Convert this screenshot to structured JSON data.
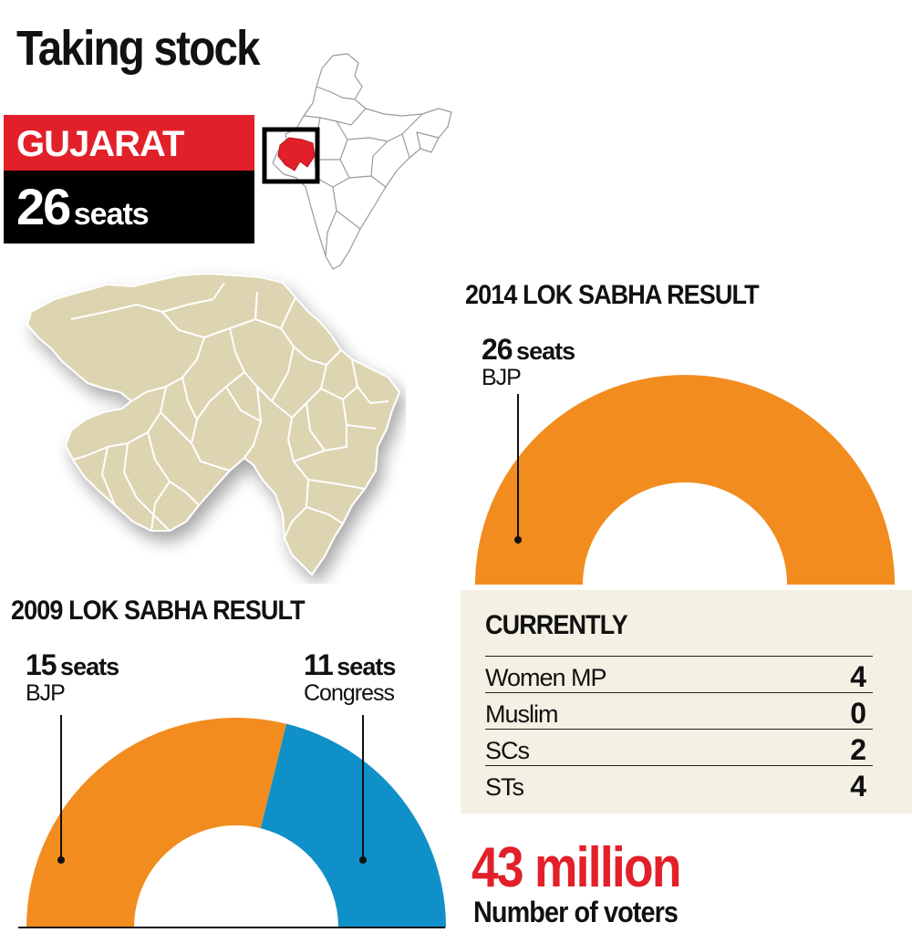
{
  "header": {
    "title": "Taking stock"
  },
  "state": {
    "name": "GUJARAT",
    "seats_num": "26",
    "seats_unit": "seats"
  },
  "colors": {
    "bjp": "#F28C1E",
    "congress": "#1090C8",
    "highlight_red": "#E2202A",
    "map_fill": "#DDD4B2",
    "panel_bg": "#F4F1E4"
  },
  "icons": {
    "india_map": "india-map-icon",
    "gujarat_map": "gujarat-district-map-icon"
  },
  "chart_data": [
    {
      "type": "pie",
      "title": "2014 LOK SABHA RESULT",
      "unit": "seats",
      "categories": [
        "BJP"
      ],
      "values": [
        26
      ],
      "labels": [
        {
          "num": "26",
          "unit": "seats",
          "party": "BJP"
        }
      ]
    },
    {
      "type": "pie",
      "title": "2009 LOK SABHA RESULT",
      "unit": "seats",
      "categories": [
        "BJP",
        "Congress"
      ],
      "values": [
        15,
        11
      ],
      "labels": [
        {
          "num": "15",
          "unit": "seats",
          "party": "BJP"
        },
        {
          "num": "11",
          "unit": "seats",
          "party": "Congress"
        }
      ]
    },
    {
      "type": "table",
      "title": "CURRENTLY",
      "rows": [
        {
          "label": "Women MP",
          "value": "4"
        },
        {
          "label": "Muslim",
          "value": "0"
        },
        {
          "label": "SCs",
          "value": "2"
        },
        {
          "label": "STs",
          "value": "4"
        }
      ]
    }
  ],
  "voters": {
    "value": "43 million",
    "label": "Number of voters"
  }
}
